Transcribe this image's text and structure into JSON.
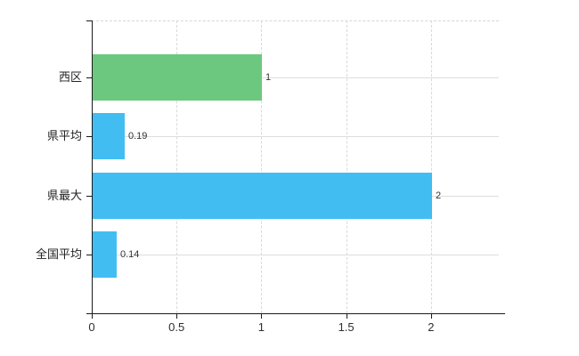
{
  "chart_data": {
    "type": "bar",
    "orientation": "horizontal",
    "title": "",
    "xlabel": "",
    "ylabel": "",
    "categories": [
      "西区",
      "県平均",
      "県最大",
      "全国平均"
    ],
    "values": [
      1,
      0.19,
      2,
      0.14
    ],
    "value_labels": [
      "1",
      "0.19",
      "2",
      "0.14"
    ],
    "bar_colors": [
      "#6cc87e",
      "#42bdf2",
      "#42bdf2",
      "#42bdf2"
    ],
    "x_ticks": [
      0,
      0.5,
      1,
      1.5,
      2
    ],
    "x_tick_labels": [
      "0",
      "0.5",
      "1",
      "1.5",
      "2"
    ],
    "xlim": [
      0,
      2.4
    ],
    "grid": true,
    "legend": false
  },
  "colors": {
    "background": "#ffffff",
    "axis": "#1a1a1a",
    "vertical_gridline": "#d9d9d9",
    "horizontal_gridline": "#dcdfdc",
    "category_label": "#222222",
    "value_label": "#333333",
    "tick_label": "#2e2e2e",
    "bar_green": "#6cc87e",
    "bar_blue": "#42bdf2"
  }
}
